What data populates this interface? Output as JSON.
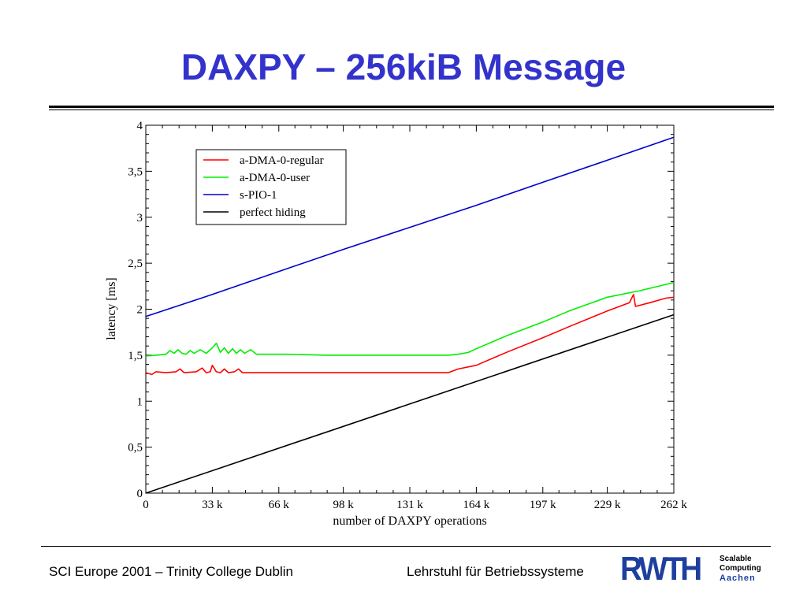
{
  "slide": {
    "title": "DAXPY – 256kiB Message",
    "footer_left": "SCI Europe 2001 – Trinity College Dublin",
    "footer_right": "Lehrstuhl für Betriebssysteme",
    "logo": {
      "mark": "RWTH",
      "line1": "Scalable",
      "line2": "Computing",
      "line3": "Aachen",
      "color": "#1f3f9e"
    },
    "title_color": "#3333cc"
  },
  "chart_data": {
    "type": "line",
    "xlabel": "number of DAXPY operations",
    "ylabel": "latency [ms]",
    "xlim": [
      0,
      262
    ],
    "ylim": [
      0,
      4
    ],
    "x_ticks": [
      {
        "value": 0,
        "label": "0"
      },
      {
        "value": 33,
        "label": "33 k"
      },
      {
        "value": 66,
        "label": "66 k"
      },
      {
        "value": 98,
        "label": "98 k"
      },
      {
        "value": 131,
        "label": "131 k"
      },
      {
        "value": 164,
        "label": "164 k"
      },
      {
        "value": 197,
        "label": "197 k"
      },
      {
        "value": 229,
        "label": "229 k"
      },
      {
        "value": 262,
        "label": "262 k"
      }
    ],
    "y_ticks": [
      {
        "value": 0,
        "label": "0"
      },
      {
        "value": 0.5,
        "label": "0,5"
      },
      {
        "value": 1,
        "label": "1"
      },
      {
        "value": 1.5,
        "label": "1,5"
      },
      {
        "value": 2,
        "label": "2"
      },
      {
        "value": 2.5,
        "label": "2,5"
      },
      {
        "value": 3,
        "label": "3"
      },
      {
        "value": 3.5,
        "label": "3,5"
      },
      {
        "value": 4,
        "label": "4"
      }
    ],
    "grid": false,
    "legend_position": "top-left",
    "series": [
      {
        "name": "a-DMA-0-regular",
        "color": "#ff0000",
        "points": [
          [
            0,
            1.31
          ],
          [
            3,
            1.29
          ],
          [
            5,
            1.32
          ],
          [
            10,
            1.31
          ],
          [
            15,
            1.32
          ],
          [
            17,
            1.35
          ],
          [
            19,
            1.31
          ],
          [
            25,
            1.32
          ],
          [
            28,
            1.36
          ],
          [
            30,
            1.31
          ],
          [
            32,
            1.32
          ],
          [
            33,
            1.39
          ],
          [
            35,
            1.32
          ],
          [
            37,
            1.31
          ],
          [
            39,
            1.35
          ],
          [
            41,
            1.31
          ],
          [
            44,
            1.32
          ],
          [
            46,
            1.35
          ],
          [
            48,
            1.31
          ],
          [
            60,
            1.31
          ],
          [
            80,
            1.31
          ],
          [
            100,
            1.31
          ],
          [
            120,
            1.31
          ],
          [
            140,
            1.31
          ],
          [
            150,
            1.31
          ],
          [
            155,
            1.35
          ],
          [
            164,
            1.39
          ],
          [
            180,
            1.54
          ],
          [
            197,
            1.69
          ],
          [
            210,
            1.81
          ],
          [
            229,
            1.98
          ],
          [
            240,
            2.07
          ],
          [
            242,
            2.16
          ],
          [
            243,
            2.03
          ],
          [
            250,
            2.07
          ],
          [
            258,
            2.12
          ],
          [
            262,
            2.13
          ]
        ]
      },
      {
        "name": "a-DMA-0-user",
        "color": "#00ee00",
        "points": [
          [
            0,
            1.49
          ],
          [
            5,
            1.5
          ],
          [
            10,
            1.51
          ],
          [
            12,
            1.55
          ],
          [
            14,
            1.52
          ],
          [
            16,
            1.56
          ],
          [
            18,
            1.52
          ],
          [
            20,
            1.51
          ],
          [
            22,
            1.55
          ],
          [
            24,
            1.52
          ],
          [
            27,
            1.56
          ],
          [
            30,
            1.52
          ],
          [
            33,
            1.58
          ],
          [
            35,
            1.63
          ],
          [
            37,
            1.53
          ],
          [
            39,
            1.58
          ],
          [
            41,
            1.52
          ],
          [
            43,
            1.57
          ],
          [
            45,
            1.52
          ],
          [
            47,
            1.56
          ],
          [
            49,
            1.52
          ],
          [
            52,
            1.56
          ],
          [
            55,
            1.51
          ],
          [
            70,
            1.51
          ],
          [
            90,
            1.5
          ],
          [
            110,
            1.5
          ],
          [
            130,
            1.5
          ],
          [
            150,
            1.5
          ],
          [
            155,
            1.51
          ],
          [
            160,
            1.53
          ],
          [
            164,
            1.57
          ],
          [
            180,
            1.72
          ],
          [
            197,
            1.86
          ],
          [
            210,
            1.98
          ],
          [
            229,
            2.13
          ],
          [
            245,
            2.2
          ],
          [
            262,
            2.29
          ]
        ]
      },
      {
        "name": "s-PIO-1",
        "color": "#0000cc",
        "points": [
          [
            0,
            1.92
          ],
          [
            33,
            2.16
          ],
          [
            66,
            2.41
          ],
          [
            98,
            2.65
          ],
          [
            131,
            2.89
          ],
          [
            164,
            3.13
          ],
          [
            197,
            3.38
          ],
          [
            229,
            3.62
          ],
          [
            262,
            3.87
          ]
        ]
      },
      {
        "name": "perfect hiding",
        "color": "#000000",
        "points": [
          [
            0,
            0
          ],
          [
            262,
            1.94
          ]
        ]
      }
    ]
  }
}
